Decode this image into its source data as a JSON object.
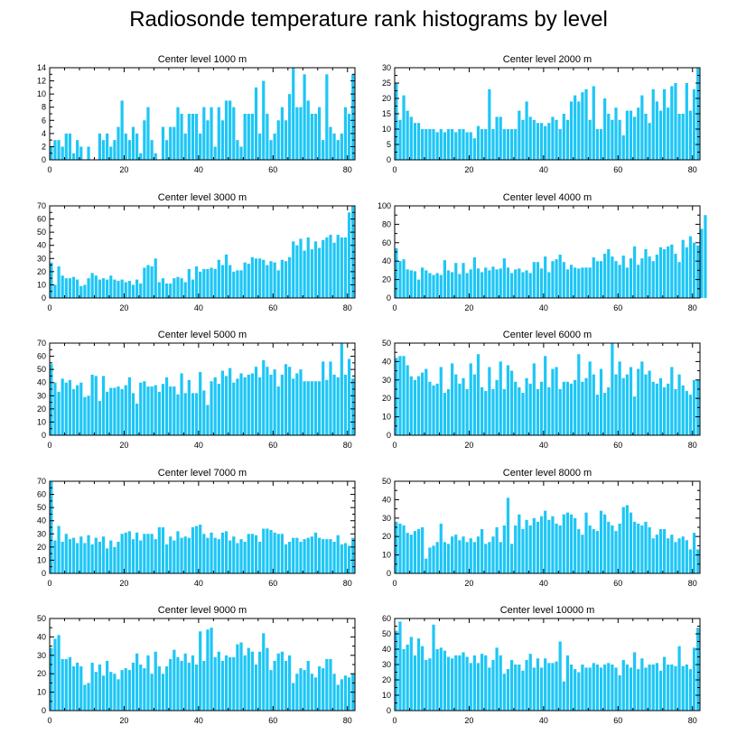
{
  "title": "Radiosonde temperature rank histograms by level",
  "colors": {
    "bar": "#1ec6f6",
    "axis": "#000000"
  },
  "chart_data": [
    {
      "type": "bar",
      "title": "Center level 1000 m",
      "xlim": [
        0,
        82
      ],
      "ylim": [
        0,
        14
      ],
      "xticks": [
        0,
        20,
        40,
        60,
        80
      ],
      "yticks": [
        0,
        2,
        4,
        6,
        8,
        10,
        12,
        14
      ],
      "values": [
        2,
        3,
        3,
        2,
        4,
        4,
        1,
        3,
        2,
        0,
        2,
        0,
        0,
        4,
        3,
        4,
        2,
        3,
        5,
        9,
        4,
        3,
        5,
        4,
        1,
        6,
        8,
        3,
        1,
        0,
        5,
        3,
        5,
        5,
        8,
        7,
        4,
        7,
        7,
        7,
        4,
        8,
        6,
        8,
        2,
        8,
        6,
        9,
        9,
        8,
        3,
        2,
        7,
        7,
        7,
        11,
        4,
        12,
        7,
        3,
        4,
        6,
        8,
        6,
        10,
        14,
        8,
        8,
        13,
        9,
        7,
        7,
        8,
        3,
        13,
        5,
        4,
        3,
        4,
        8,
        7,
        13
      ]
    },
    {
      "type": "bar",
      "title": "Center level 2000 m",
      "xlim": [
        0,
        82
      ],
      "ylim": [
        0,
        30
      ],
      "xticks": [
        0,
        20,
        40,
        60,
        80
      ],
      "yticks": [
        0,
        5,
        10,
        15,
        20,
        25,
        30
      ],
      "values": [
        25,
        13,
        21,
        16,
        14,
        12,
        12,
        10,
        10,
        10,
        10,
        9,
        10,
        9,
        10,
        10,
        9,
        10,
        10,
        9,
        9,
        7,
        11,
        10,
        10,
        23,
        10,
        14,
        14,
        10,
        10,
        10,
        10,
        16,
        13,
        19,
        14,
        13,
        12,
        12,
        11,
        12,
        14,
        13,
        10,
        15,
        13,
        19,
        21,
        19,
        22,
        23,
        13,
        24,
        10,
        10,
        20,
        15,
        13,
        17,
        13,
        8,
        16,
        16,
        14,
        17,
        21,
        15,
        12,
        23,
        19,
        16,
        23,
        17,
        24,
        25,
        15,
        15,
        25,
        16,
        23,
        30
      ]
    },
    {
      "type": "bar",
      "title": "Center level 3000 m",
      "xlim": [
        0,
        82
      ],
      "ylim": [
        0,
        70
      ],
      "xticks": [
        0,
        20,
        40,
        60,
        80
      ],
      "yticks": [
        0,
        10,
        20,
        30,
        40,
        50,
        60,
        70
      ],
      "values": [
        27,
        10,
        24,
        17,
        15,
        15,
        16,
        14,
        9,
        10,
        15,
        19,
        17,
        14,
        15,
        14,
        17,
        14,
        13,
        14,
        12,
        13,
        10,
        14,
        11,
        23,
        25,
        24,
        30,
        12,
        15,
        11,
        11,
        15,
        16,
        15,
        12,
        22,
        14,
        24,
        20,
        22,
        22,
        23,
        22,
        29,
        25,
        33,
        25,
        20,
        21,
        21,
        27,
        26,
        31,
        30,
        30,
        29,
        25,
        28,
        27,
        21,
        29,
        28,
        31,
        43,
        40,
        45,
        36,
        46,
        37,
        43,
        38,
        44,
        46,
        48,
        42,
        48,
        46,
        46,
        65,
        70
      ]
    },
    {
      "type": "bar",
      "title": "Center level 4000 m",
      "xlim": [
        0,
        82
      ],
      "ylim": [
        0,
        100
      ],
      "xticks": [
        0,
        20,
        40,
        60,
        80
      ],
      "yticks": [
        0,
        20,
        40,
        60,
        80,
        100
      ],
      "values": [
        54,
        40,
        42,
        31,
        30,
        29,
        20,
        33,
        30,
        27,
        25,
        27,
        25,
        41,
        30,
        28,
        38,
        26,
        38,
        27,
        31,
        44,
        32,
        28,
        33,
        30,
        34,
        31,
        32,
        43,
        33,
        27,
        31,
        32,
        28,
        30,
        27,
        39,
        39,
        32,
        45,
        28,
        40,
        42,
        47,
        39,
        31,
        36,
        33,
        32,
        33,
        33,
        33,
        44,
        40,
        40,
        48,
        53,
        45,
        40,
        36,
        46,
        33,
        43,
        56,
        36,
        43,
        53,
        45,
        40,
        47,
        55,
        53,
        56,
        58,
        48,
        39,
        63,
        55,
        67,
        60,
        57,
        75,
        90
      ]
    },
    {
      "type": "bar",
      "title": "Center level 5000 m",
      "xlim": [
        0,
        82
      ],
      "ylim": [
        0,
        70
      ],
      "xticks": [
        0,
        20,
        40,
        60,
        80
      ],
      "yticks": [
        0,
        10,
        20,
        30,
        40,
        50,
        60,
        70
      ],
      "values": [
        54,
        40,
        33,
        43,
        40,
        42,
        35,
        38,
        40,
        29,
        30,
        46,
        45,
        26,
        45,
        33,
        36,
        36,
        37,
        35,
        38,
        44,
        32,
        24,
        40,
        41,
        37,
        37,
        38,
        33,
        39,
        44,
        37,
        37,
        31,
        47,
        32,
        42,
        32,
        32,
        48,
        34,
        23,
        41,
        44,
        39,
        49,
        45,
        51,
        40,
        43,
        47,
        44,
        46,
        47,
        52,
        44,
        57,
        52,
        46,
        50,
        37,
        46,
        54,
        52,
        43,
        47,
        50,
        41,
        41,
        41,
        41,
        41,
        56,
        42,
        56,
        46,
        44,
        70,
        46,
        58,
        43
      ]
    },
    {
      "type": "bar",
      "title": "Center level 6000 m",
      "xlim": [
        0,
        82
      ],
      "ylim": [
        0,
        50
      ],
      "xticks": [
        0,
        20,
        40,
        60,
        80
      ],
      "yticks": [
        0,
        10,
        20,
        30,
        40,
        50
      ],
      "values": [
        42,
        43,
        43,
        38,
        32,
        30,
        32,
        34,
        36,
        29,
        27,
        28,
        37,
        23,
        25,
        39,
        33,
        28,
        31,
        25,
        39,
        33,
        44,
        26,
        24,
        37,
        25,
        30,
        40,
        25,
        38,
        35,
        29,
        26,
        23,
        31,
        28,
        39,
        25,
        29,
        43,
        26,
        36,
        37,
        25,
        29,
        29,
        28,
        30,
        44,
        29,
        31,
        40,
        33,
        22,
        36,
        23,
        26,
        50,
        33,
        40,
        31,
        33,
        37,
        21,
        36,
        40,
        33,
        35,
        29,
        28,
        31,
        26,
        28,
        37,
        25,
        33,
        27,
        24,
        22,
        30,
        30
      ]
    },
    {
      "type": "bar",
      "title": "Center level 7000 m",
      "xlim": [
        0,
        82
      ],
      "ylim": [
        0,
        70
      ],
      "xticks": [
        0,
        20,
        40,
        60,
        80
      ],
      "yticks": [
        0,
        10,
        20,
        30,
        40,
        50,
        60,
        70
      ],
      "values": [
        70,
        25,
        36,
        24,
        30,
        26,
        27,
        23,
        28,
        23,
        29,
        22,
        27,
        24,
        28,
        19,
        25,
        20,
        24,
        30,
        31,
        32,
        26,
        31,
        25,
        30,
        30,
        30,
        26,
        35,
        35,
        22,
        28,
        25,
        32,
        27,
        28,
        27,
        35,
        36,
        37,
        30,
        27,
        31,
        27,
        26,
        31,
        32,
        25,
        28,
        23,
        26,
        24,
        30,
        30,
        29,
        24,
        34,
        34,
        33,
        31,
        30,
        30,
        22,
        24,
        27,
        27,
        24,
        26,
        27,
        28,
        31,
        27,
        26,
        26,
        26,
        24,
        29,
        22,
        23,
        21,
        27
      ]
    },
    {
      "type": "bar",
      "title": "Center level 8000 m",
      "xlim": [
        0,
        82
      ],
      "ylim": [
        0,
        50
      ],
      "xticks": [
        0,
        20,
        40,
        60,
        80
      ],
      "yticks": [
        0,
        10,
        20,
        30,
        40,
        50
      ],
      "values": [
        28,
        27,
        26,
        22,
        21,
        23,
        24,
        25,
        8,
        14,
        15,
        17,
        27,
        17,
        16,
        20,
        21,
        18,
        20,
        17,
        19,
        17,
        20,
        24,
        16,
        17,
        20,
        25,
        17,
        26,
        41,
        16,
        26,
        32,
        24,
        29,
        26,
        30,
        28,
        31,
        34,
        29,
        31,
        27,
        26,
        32,
        33,
        32,
        30,
        24,
        21,
        33,
        26,
        24,
        23,
        34,
        32,
        28,
        26,
        23,
        27,
        36,
        37,
        33,
        28,
        27,
        26,
        28,
        25,
        19,
        21,
        24,
        24,
        19,
        21,
        17,
        19,
        20,
        18,
        13,
        22,
        13
      ]
    },
    {
      "type": "bar",
      "title": "Center level 9000 m",
      "xlim": [
        0,
        82
      ],
      "ylim": [
        0,
        50
      ],
      "xticks": [
        0,
        20,
        40,
        60,
        80
      ],
      "yticks": [
        0,
        10,
        20,
        30,
        40,
        50
      ],
      "values": [
        34,
        39,
        41,
        28,
        28,
        29,
        24,
        26,
        24,
        14,
        15,
        26,
        21,
        25,
        19,
        27,
        21,
        20,
        17,
        22,
        23,
        22,
        26,
        31,
        25,
        23,
        30,
        20,
        32,
        24,
        20,
        24,
        28,
        33,
        29,
        27,
        31,
        26,
        30,
        25,
        43,
        27,
        44,
        45,
        29,
        32,
        27,
        30,
        29,
        29,
        36,
        37,
        30,
        34,
        32,
        25,
        32,
        42,
        34,
        22,
        27,
        31,
        32,
        27,
        30,
        15,
        20,
        23,
        22,
        27,
        20,
        18,
        24,
        23,
        28,
        28,
        20,
        14,
        17,
        19,
        18,
        20
      ]
    },
    {
      "type": "bar",
      "title": "Center level 10000 m",
      "xlim": [
        0,
        82
      ],
      "ylim": [
        0,
        60
      ],
      "xticks": [
        0,
        20,
        40,
        60,
        80
      ],
      "yticks": [
        0,
        10,
        20,
        30,
        40,
        50,
        60
      ],
      "values": [
        52,
        58,
        40,
        43,
        48,
        36,
        47,
        42,
        33,
        34,
        56,
        40,
        41,
        39,
        35,
        34,
        36,
        36,
        38,
        35,
        31,
        36,
        31,
        37,
        36,
        28,
        33,
        41,
        36,
        24,
        27,
        33,
        30,
        30,
        26,
        33,
        37,
        28,
        34,
        28,
        34,
        31,
        31,
        32,
        45,
        19,
        36,
        30,
        27,
        25,
        30,
        28,
        28,
        31,
        30,
        28,
        30,
        31,
        30,
        28,
        23,
        33,
        30,
        28,
        38,
        27,
        34,
        28,
        30,
        30,
        31,
        26,
        35,
        30,
        30,
        29,
        42,
        29,
        30,
        27,
        41,
        54
      ]
    }
  ]
}
